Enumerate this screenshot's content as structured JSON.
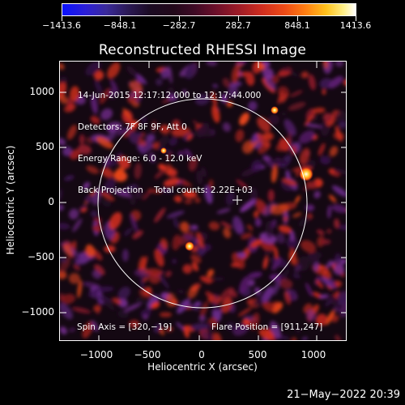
{
  "colorbar": {
    "tick_labels": [
      "−1413.6",
      "−848.1",
      "−282.7",
      "282.7",
      "848.1",
      "1413.6"
    ]
  },
  "title": "Reconstructed RHESSI Image",
  "info": {
    "line1": "14-Jun-2015 12:17:12.000 to 12:17:44.000",
    "line2": "Detectors: 7F 8F 9F, Att 0",
    "line3": "Energy Range: 6.0 - 12.0 keV",
    "line4": "Back Projection    Total counts: 2.22E+03"
  },
  "spin_axis": "Spin Axis = [320,−19]",
  "flare_position": "Flare Position = [911,247]",
  "axes": {
    "xlabel": "Heliocentric X (arcsec)",
    "ylabel": "Heliocentric Y (arcsec)",
    "xticks": [
      "−1000",
      "−500",
      "0",
      "500",
      "1000"
    ],
    "yticks": [
      "1000",
      "500",
      "0",
      "−500",
      "−1000"
    ]
  },
  "footer_date": "21−May−2022 20:39",
  "colors": {
    "background": "#000000",
    "limb_circle": "#ffffff",
    "low": "#0a12ff",
    "high": "#ffffff"
  }
}
